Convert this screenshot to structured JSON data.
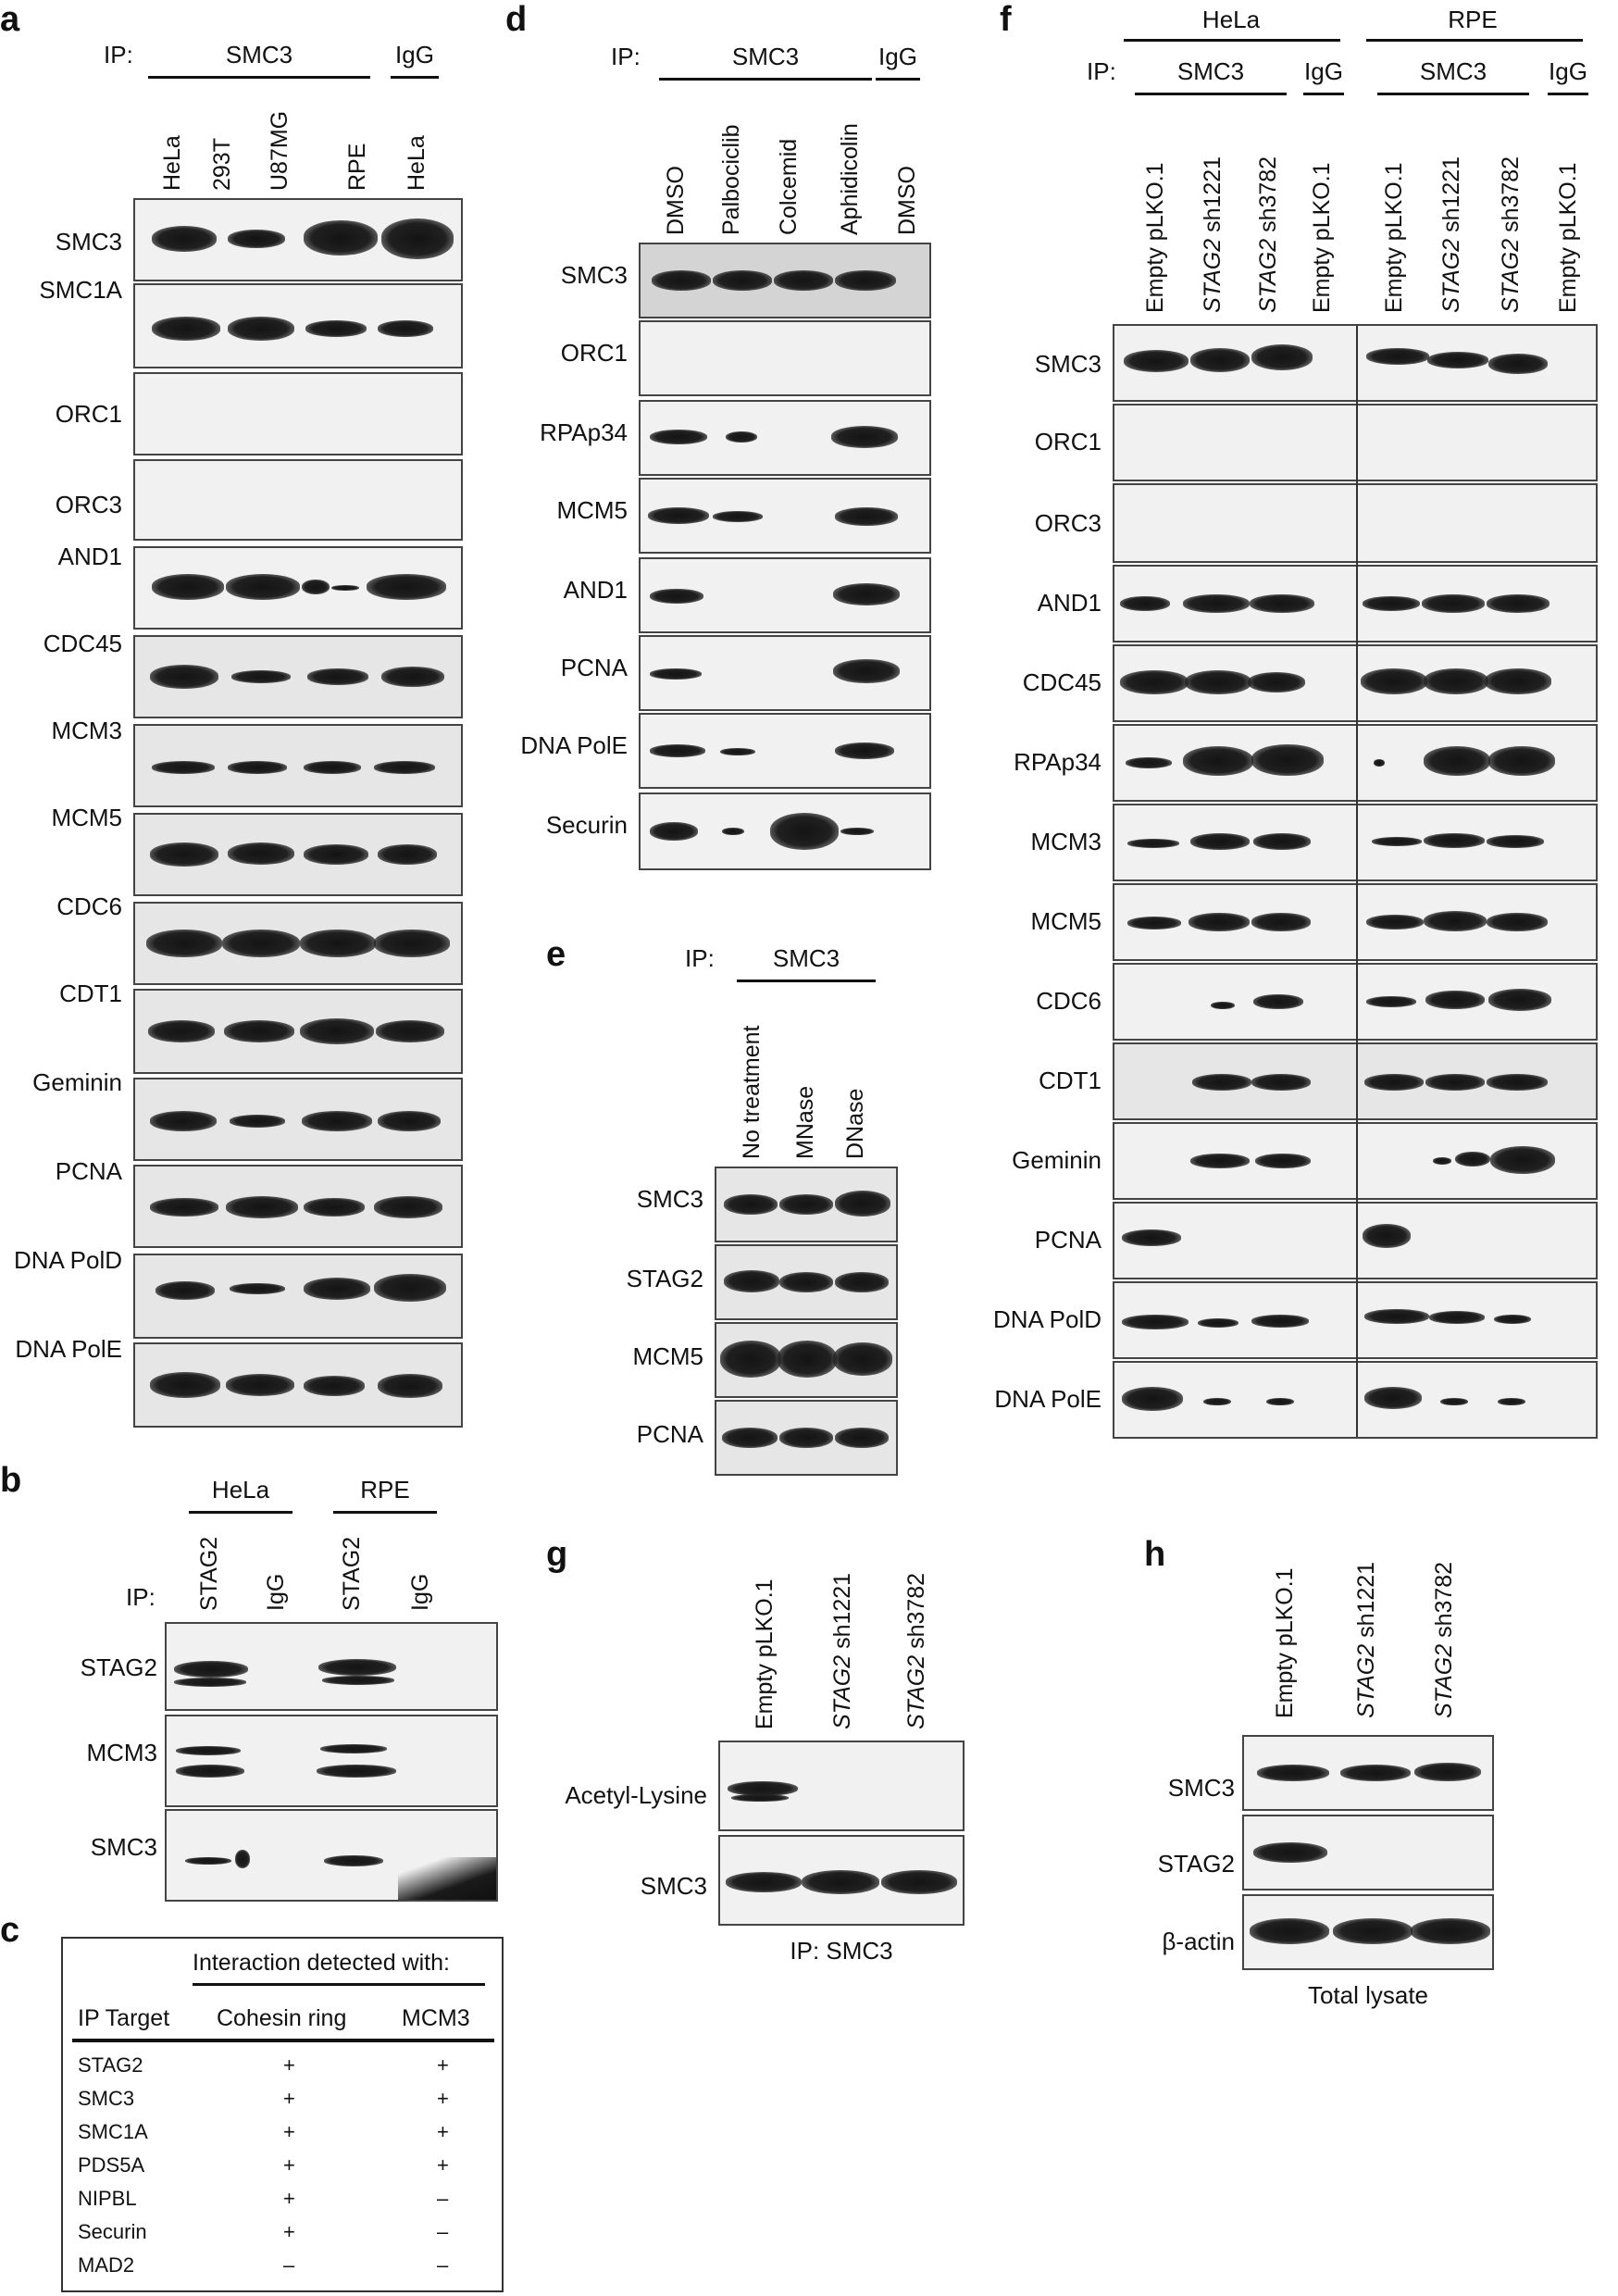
{
  "panel_a": {
    "letter": "a",
    "ip_label": "IP:",
    "smc3_label": "SMC3",
    "igg_label": "IgG",
    "lanes": [
      "HeLa",
      "293T",
      "U87MG",
      "RPE",
      "HeLa"
    ],
    "rows": [
      "SMC3",
      "SMC1A",
      "ORC1",
      "ORC3",
      "AND1",
      "CDC45",
      "MCM3",
      "MCM5",
      "CDC6",
      "CDT1",
      "Geminin",
      "PCNA",
      "DNA PolD",
      "DNA PolE"
    ]
  },
  "panel_b": {
    "letter": "b",
    "group1": "HeLa",
    "group2": "RPE",
    "ip_label": "IP:",
    "lanes": [
      "STAG2",
      "IgG",
      "STAG2",
      "IgG"
    ],
    "rows": [
      "STAG2",
      "MCM3",
      "SMC3"
    ]
  },
  "panel_c": {
    "letter": "c",
    "header_span": "Interaction detected with:",
    "col_ip": "IP Target",
    "col_cohesin": "Cohesin ring",
    "col_mcm3": "MCM3",
    "rows": [
      {
        "target": "STAG2",
        "cohesin": "+",
        "mcm3": "+"
      },
      {
        "target": "SMC3",
        "cohesin": "+",
        "mcm3": "+"
      },
      {
        "target": "SMC1A",
        "cohesin": "+",
        "mcm3": "+"
      },
      {
        "target": "PDS5A",
        "cohesin": "+",
        "mcm3": "+"
      },
      {
        "target": "NIPBL",
        "cohesin": "+",
        "mcm3": "–"
      },
      {
        "target": "Securin",
        "cohesin": "+",
        "mcm3": "–"
      },
      {
        "target": "MAD2",
        "cohesin": "–",
        "mcm3": "–"
      }
    ]
  },
  "panel_d": {
    "letter": "d",
    "ip_label": "IP:",
    "smc3_label": "SMC3",
    "igg_label": "IgG",
    "lanes": [
      "DMSO",
      "Palbociclib",
      "Colcemid",
      "Aphidicolin",
      "DMSO"
    ],
    "rows": [
      "SMC3",
      "ORC1",
      "RPAp34",
      "MCM5",
      "AND1",
      "PCNA",
      "DNA PolE",
      "Securin"
    ]
  },
  "panel_e": {
    "letter": "e",
    "ip_label": "IP:",
    "smc3_label": "SMC3",
    "lanes": [
      "No treatment",
      "MNase",
      "DNase"
    ],
    "rows": [
      "SMC3",
      "STAG2",
      "MCM5",
      "PCNA"
    ]
  },
  "panel_f": {
    "letter": "f",
    "group1": "HeLa",
    "group2": "RPE",
    "ip_label": "IP:",
    "smc3_label": "SMC3",
    "igg_label": "IgG",
    "lanes": [
      {
        "gene": "",
        "text": "Empty pLKO.1"
      },
      {
        "gene": "STAG2",
        "text": " sh1221"
      },
      {
        "gene": "STAG2",
        "text": " sh3782"
      },
      {
        "gene": "",
        "text": "Empty pLKO.1"
      },
      {
        "gene": "",
        "text": "Empty pLKO.1"
      },
      {
        "gene": "STAG2",
        "text": " sh1221"
      },
      {
        "gene": "STAG2",
        "text": " sh3782"
      },
      {
        "gene": "",
        "text": "Empty pLKO.1"
      }
    ],
    "rows": [
      "SMC3",
      "ORC1",
      "ORC3",
      "AND1",
      "CDC45",
      "RPAp34",
      "MCM3",
      "MCM5",
      "CDC6",
      "CDT1",
      "Geminin",
      "PCNA",
      "DNA PolD",
      "DNA PolE"
    ]
  },
  "panel_g": {
    "letter": "g",
    "lanes": [
      {
        "gene": "",
        "text": "Empty pLKO.1"
      },
      {
        "gene": "STAG2",
        "text": " sh1221"
      },
      {
        "gene": "STAG2",
        "text": " sh3782"
      }
    ],
    "rows": [
      "Acetyl-Lysine",
      "SMC3"
    ],
    "footer": "IP: SMC3"
  },
  "panel_h": {
    "letter": "h",
    "lanes": [
      {
        "gene": "",
        "text": "Empty pLKO.1"
      },
      {
        "gene": "STAG2",
        "text": " sh1221"
      },
      {
        "gene": "STAG2",
        "text": " sh3782"
      }
    ],
    "rows": [
      "SMC3",
      "STAG2",
      "β-actin"
    ],
    "footer": "Total lysate"
  }
}
